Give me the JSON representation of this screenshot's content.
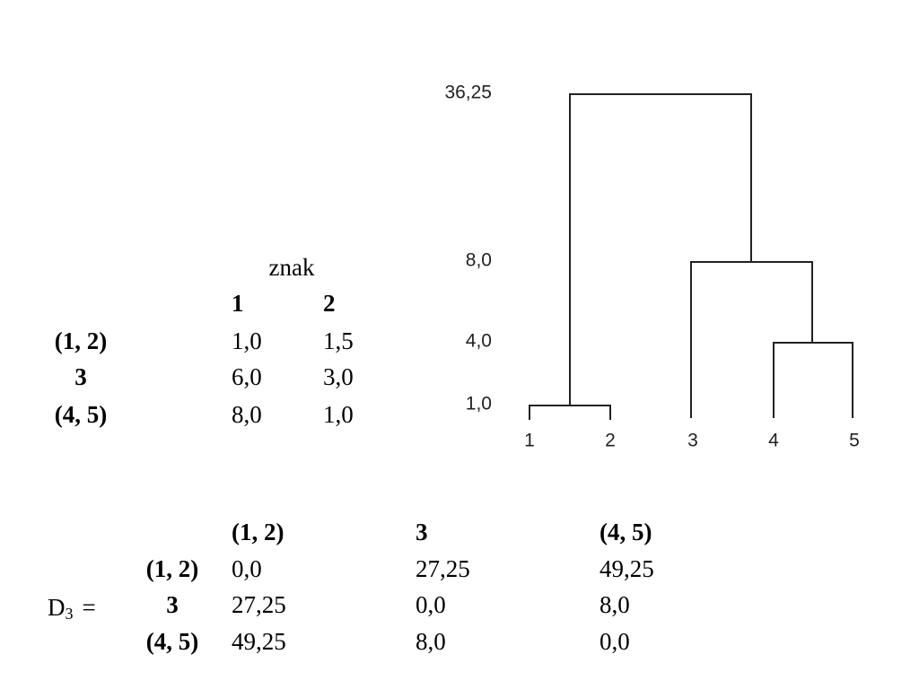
{
  "table1": {
    "header": "znak",
    "columns": [
      "1",
      "2"
    ],
    "rows": [
      [
        "(1, 2)",
        "1,0",
        "1,5"
      ],
      [
        "3",
        "6,0",
        "3,0"
      ],
      [
        "(4, 5)",
        "8,0",
        "1,0"
      ]
    ]
  },
  "dendrogram": {
    "levels": [
      "36,25",
      "8,0",
      "4,0",
      "1,0"
    ],
    "leaves": [
      "1",
      "2",
      "3",
      "4",
      "5"
    ]
  },
  "matrix": {
    "name": "D",
    "subscript": "3",
    "suffix": "=",
    "columns": [
      "(1, 2)",
      "3",
      "(4, 5)"
    ],
    "rows": [
      [
        "(1, 2)",
        "0,0",
        "27,25",
        "49,25"
      ],
      [
        "3",
        "27,25",
        "0,0",
        "8,0"
      ],
      [
        "(4, 5)",
        "49,25",
        "8,0",
        "0,0"
      ]
    ]
  }
}
